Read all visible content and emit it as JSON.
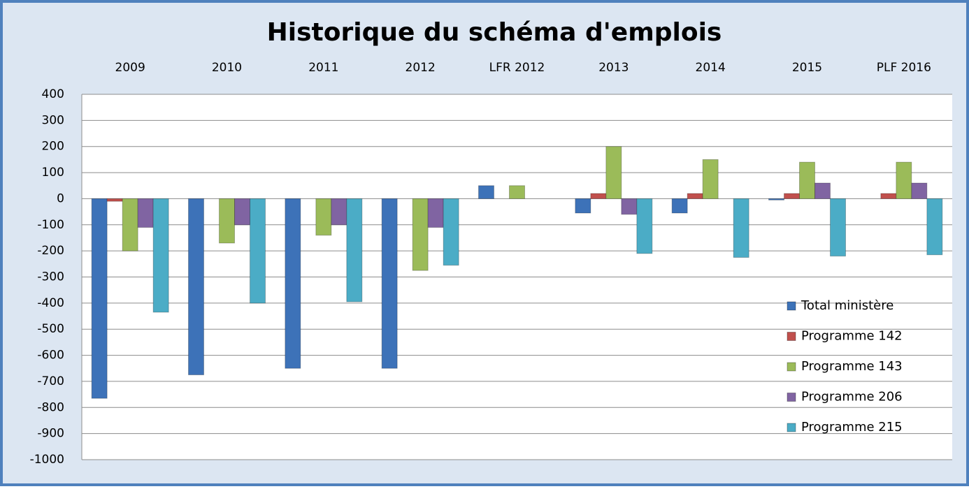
{
  "chart_data": {
    "type": "bar",
    "title": "Historique du schéma d'emplois",
    "categories": [
      "2009",
      "2010",
      "2011",
      "2012",
      "LFR 2012",
      "2013",
      "2014",
      "2015",
      "PLF 2016"
    ],
    "series": [
      {
        "name": "Total ministère",
        "color": "#3d72b8",
        "values": [
          -765,
          -675,
          -650,
          -650,
          50,
          -55,
          -55,
          -5,
          null
        ]
      },
      {
        "name": "Programme 142",
        "color": "#c0504d",
        "values": [
          -10,
          null,
          null,
          null,
          null,
          20,
          20,
          20,
          20
        ]
      },
      {
        "name": "Programme 143",
        "color": "#9bbb59",
        "values": [
          -200,
          -170,
          -140,
          -275,
          50,
          200,
          150,
          140,
          140
        ]
      },
      {
        "name": "Programme 206",
        "color": "#8064a2",
        "values": [
          -110,
          -100,
          -100,
          -110,
          null,
          -60,
          null,
          60,
          60
        ]
      },
      {
        "name": "Programme 215",
        "color": "#4bacc6",
        "values": [
          -435,
          -400,
          -395,
          -255,
          null,
          -210,
          -225,
          -220,
          -215
        ]
      }
    ],
    "ylim": [
      -1000,
      400
    ],
    "yticks": [
      400,
      300,
      200,
      100,
      0,
      -100,
      -200,
      -300,
      -400,
      -500,
      -600,
      -700,
      -800,
      -900,
      -1000
    ],
    "grid": true,
    "legend": "lower right"
  }
}
